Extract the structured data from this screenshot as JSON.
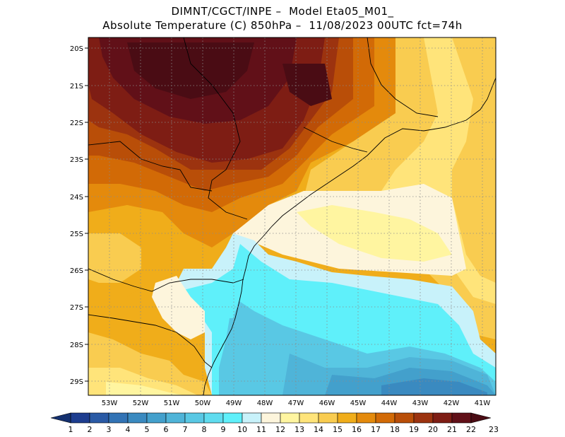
{
  "header": {
    "line1": "DIMNT/CGCT/INPE –  Model Eta05_M01_",
    "line2": "Absolute Temperature (C) 850hPa –  11/08/2023 00UTC fct=74h"
  },
  "map": {
    "lat_ticks": [
      "20S",
      "21S",
      "22S",
      "23S",
      "24S",
      "25S",
      "26S",
      "27S",
      "28S",
      "29S"
    ],
    "lon_ticks": [
      "53W",
      "52W",
      "51W",
      "50W",
      "49W",
      "48W",
      "47W",
      "46W",
      "45W",
      "44W",
      "43W",
      "42W",
      "41W"
    ],
    "lat_range": [
      -29.4,
      -19.8
    ],
    "lon_range": [
      -53.7,
      -40.6
    ],
    "grid": "dotted"
  },
  "colorbar": {
    "labels": [
      "1",
      "2",
      "3",
      "4",
      "5",
      "6",
      "7",
      "8",
      "9",
      "10",
      "11",
      "12",
      "13",
      "14",
      "15",
      "16",
      "17",
      "18",
      "19",
      "20",
      "21",
      "22",
      "23"
    ],
    "colors": [
      "#1d3d8f",
      "#2a5aa5",
      "#3273b5",
      "#3a8ac0",
      "#43a0cc",
      "#4fb4d8",
      "#59c8e4",
      "#5fdcef",
      "#5ff0fa",
      "#c8f2fa",
      "#fdf5dc",
      "#fff5a0",
      "#ffe47a",
      "#f9cc50",
      "#f0ad1a",
      "#e48a0c",
      "#d26a06",
      "#b94e08",
      "#9c330f",
      "#7e1d14",
      "#611018"
    ]
  }
}
